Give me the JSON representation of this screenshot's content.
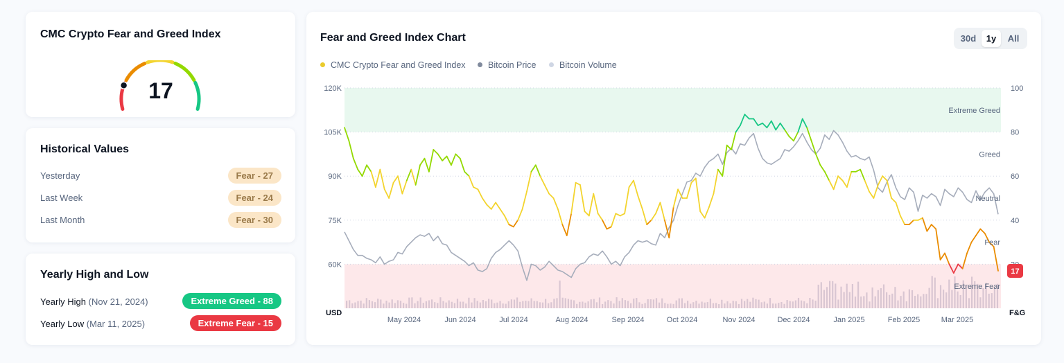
{
  "gauge": {
    "title": "CMC Crypto Fear and Greed Index",
    "value": "17",
    "colors": [
      "#ea3943",
      "#ea8c00",
      "#f3d42f",
      "#93d900",
      "#16c784"
    ]
  },
  "historical": {
    "title": "Historical Values",
    "rows": [
      {
        "label": "Yesterday",
        "badge": "Fear - 27"
      },
      {
        "label": "Last Week",
        "badge": "Fear - 24"
      },
      {
        "label": "Last Month",
        "badge": "Fear - 30"
      }
    ]
  },
  "yearly": {
    "title": "Yearly High and Low",
    "high_label": "Yearly High",
    "high_date": "(Nov 21, 2024)",
    "high_badge": "Extreme Greed - 88",
    "low_label": "Yearly Low",
    "low_date": "(Mar 11, 2025)",
    "low_badge": "Extreme Fear - 15"
  },
  "chart_panel": {
    "title": "Fear and Greed Index Chart",
    "ranges": [
      "30d",
      "1y",
      "All"
    ],
    "active_range": "1y"
  },
  "chart_data": {
    "type": "line",
    "title": "Fear and Greed Index Chart",
    "legend": [
      "CMC Crypto Fear and Greed Index",
      "Bitcoin Price",
      "Bitcoin Volume"
    ],
    "legend_colors": [
      "#eacb2c",
      "#808a9d",
      "#cfd6e4"
    ],
    "legend_position": "top-left",
    "left_axis": {
      "label": "USD",
      "ticks": [
        "120K",
        "105K",
        "90K",
        "75K",
        "60K"
      ],
      "range": [
        45000,
        120000
      ]
    },
    "right_axis": {
      "label": "F&G",
      "ticks": [
        "100",
        "80",
        "60",
        "40",
        "20"
      ],
      "range": [
        0,
        100
      ]
    },
    "x_ticks": [
      "May 2024",
      "Jun 2024",
      "Jul 2024",
      "Aug 2024",
      "Sep 2024",
      "Oct 2024",
      "Nov 2024",
      "Dec 2024",
      "Jan 2025",
      "Feb 2025",
      "Mar 2025"
    ],
    "zones": [
      {
        "label": "Extreme Greed",
        "from": 80,
        "to": 100,
        "color": "#e8f8ef"
      },
      {
        "label": "Greed",
        "from": 60,
        "to": 80,
        "color": ""
      },
      {
        "label": "Neutral",
        "from": 40,
        "to": 60,
        "color": ""
      },
      {
        "label": "Fear",
        "from": 20,
        "to": 40,
        "color": ""
      },
      {
        "label": "Extreme Fear",
        "from": 0,
        "to": 20,
        "color": "#fde8ea"
      }
    ],
    "current_value": "17",
    "fg_index": [
      82,
      76,
      68,
      63,
      60,
      65,
      62,
      55,
      63,
      54,
      50,
      57,
      60,
      52,
      58,
      63,
      56,
      65,
      68,
      62,
      72,
      70,
      67,
      69,
      65,
      70,
      68,
      62,
      60,
      55,
      54,
      50,
      47,
      45,
      48,
      45,
      42,
      38,
      37,
      40,
      45,
      53,
      62,
      65,
      60,
      56,
      52,
      50,
      45,
      38,
      33,
      43,
      57,
      56,
      44,
      42,
      52,
      43,
      40,
      36,
      37,
      43,
      42,
      43,
      55,
      58,
      51,
      45,
      38,
      40,
      43,
      48,
      40,
      32,
      46,
      54,
      50,
      50,
      57,
      59,
      44,
      41,
      46,
      52,
      63,
      60,
      74,
      72,
      80,
      83,
      88,
      86,
      86,
      83,
      84,
      82,
      85,
      81,
      84,
      81,
      78,
      76,
      80,
      86,
      82,
      76,
      70,
      65,
      62,
      58,
      54,
      60,
      58,
      55,
      62,
      62,
      63,
      58,
      53,
      50,
      56,
      60,
      58,
      50,
      48,
      42,
      38,
      38,
      40,
      40,
      41,
      35,
      38,
      36,
      22,
      25,
      20,
      16,
      20,
      18,
      25,
      30,
      33,
      36,
      34,
      30,
      28,
      17
    ],
    "btc_price": [
      71000,
      68000,
      65000,
      63000,
      63000,
      62000,
      61500,
      60500,
      62500,
      60000,
      61000,
      61500,
      64000,
      63500,
      66000,
      67500,
      69000,
      70000,
      69500,
      70500,
      68000,
      69500,
      67000,
      66500,
      64000,
      63000,
      62000,
      61000,
      59500,
      60500,
      58000,
      57500,
      58500,
      62000,
      64000,
      65000,
      66500,
      68000,
      66500,
      64500,
      59000,
      54500,
      60000,
      59500,
      58000,
      59000,
      61000,
      59500,
      58000,
      57500,
      56500,
      55500,
      58500,
      60000,
      60500,
      62500,
      63500,
      63000,
      64500,
      62500,
      60000,
      61000,
      59500,
      62500,
      64000,
      66500,
      68000,
      67500,
      68000,
      67000,
      66500,
      70500,
      69000,
      72500,
      75000,
      80000,
      84000,
      88000,
      88500,
      91000,
      90000,
      93000,
      95000,
      96000,
      97500,
      94000,
      98000,
      99500,
      97500,
      101000,
      100500,
      103000,
      104500,
      99500,
      96000,
      94500,
      94000,
      95000,
      96000,
      99000,
      98500,
      100000,
      102000,
      104500,
      101500,
      99000,
      97500,
      99500,
      104000,
      102500,
      105500,
      104000,
      101500,
      98500,
      96500,
      97000,
      96000,
      95500,
      96500,
      92000,
      86000,
      84500,
      88000,
      90500,
      86000,
      83000,
      82000,
      86000,
      84500,
      78000,
      83500,
      82500,
      84000,
      83000,
      80000,
      85500,
      84000,
      83000,
      86000,
      84500,
      82000,
      81000,
      85000,
      82000,
      84500,
      86000,
      84000,
      77000
    ],
    "btc_volume_note": "volume bars rendered as shape only"
  }
}
